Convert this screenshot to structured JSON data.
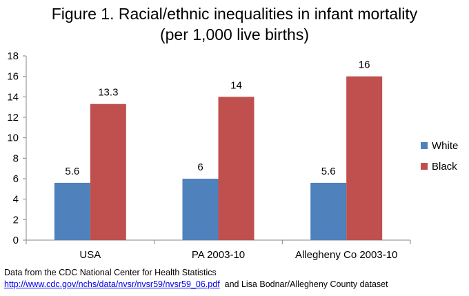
{
  "chart_data": {
    "type": "bar",
    "title": [
      "Figure 1. Racial/ethnic inequalities in infant mortality",
      "(per 1,000 live births)"
    ],
    "categories": [
      "USA",
      "PA 2003-10",
      "Allegheny Co 2003-10"
    ],
    "series": [
      {
        "name": "White",
        "color": "#4f81bd",
        "values": [
          5.6,
          6,
          5.6
        ],
        "labels": [
          "5.6",
          "6",
          "5.6"
        ]
      },
      {
        "name": "Black",
        "color": "#c0504d",
        "values": [
          13.3,
          14,
          16
        ],
        "labels": [
          "13.3",
          "14",
          "16"
        ]
      }
    ],
    "ylim": [
      0,
      18
    ],
    "yticks": [
      0,
      2,
      4,
      6,
      8,
      10,
      12,
      14,
      16,
      18
    ],
    "grid": false,
    "legend": "right"
  },
  "source": {
    "line1": "Data from the CDC National Center for Health Statistics",
    "link": "http://www.cdc.gov/nchs/data/nvsr/nvsr59/nvsr59_06.pdf",
    "line2_suffix": "and Lisa Bodnar/Allegheny County dataset"
  }
}
